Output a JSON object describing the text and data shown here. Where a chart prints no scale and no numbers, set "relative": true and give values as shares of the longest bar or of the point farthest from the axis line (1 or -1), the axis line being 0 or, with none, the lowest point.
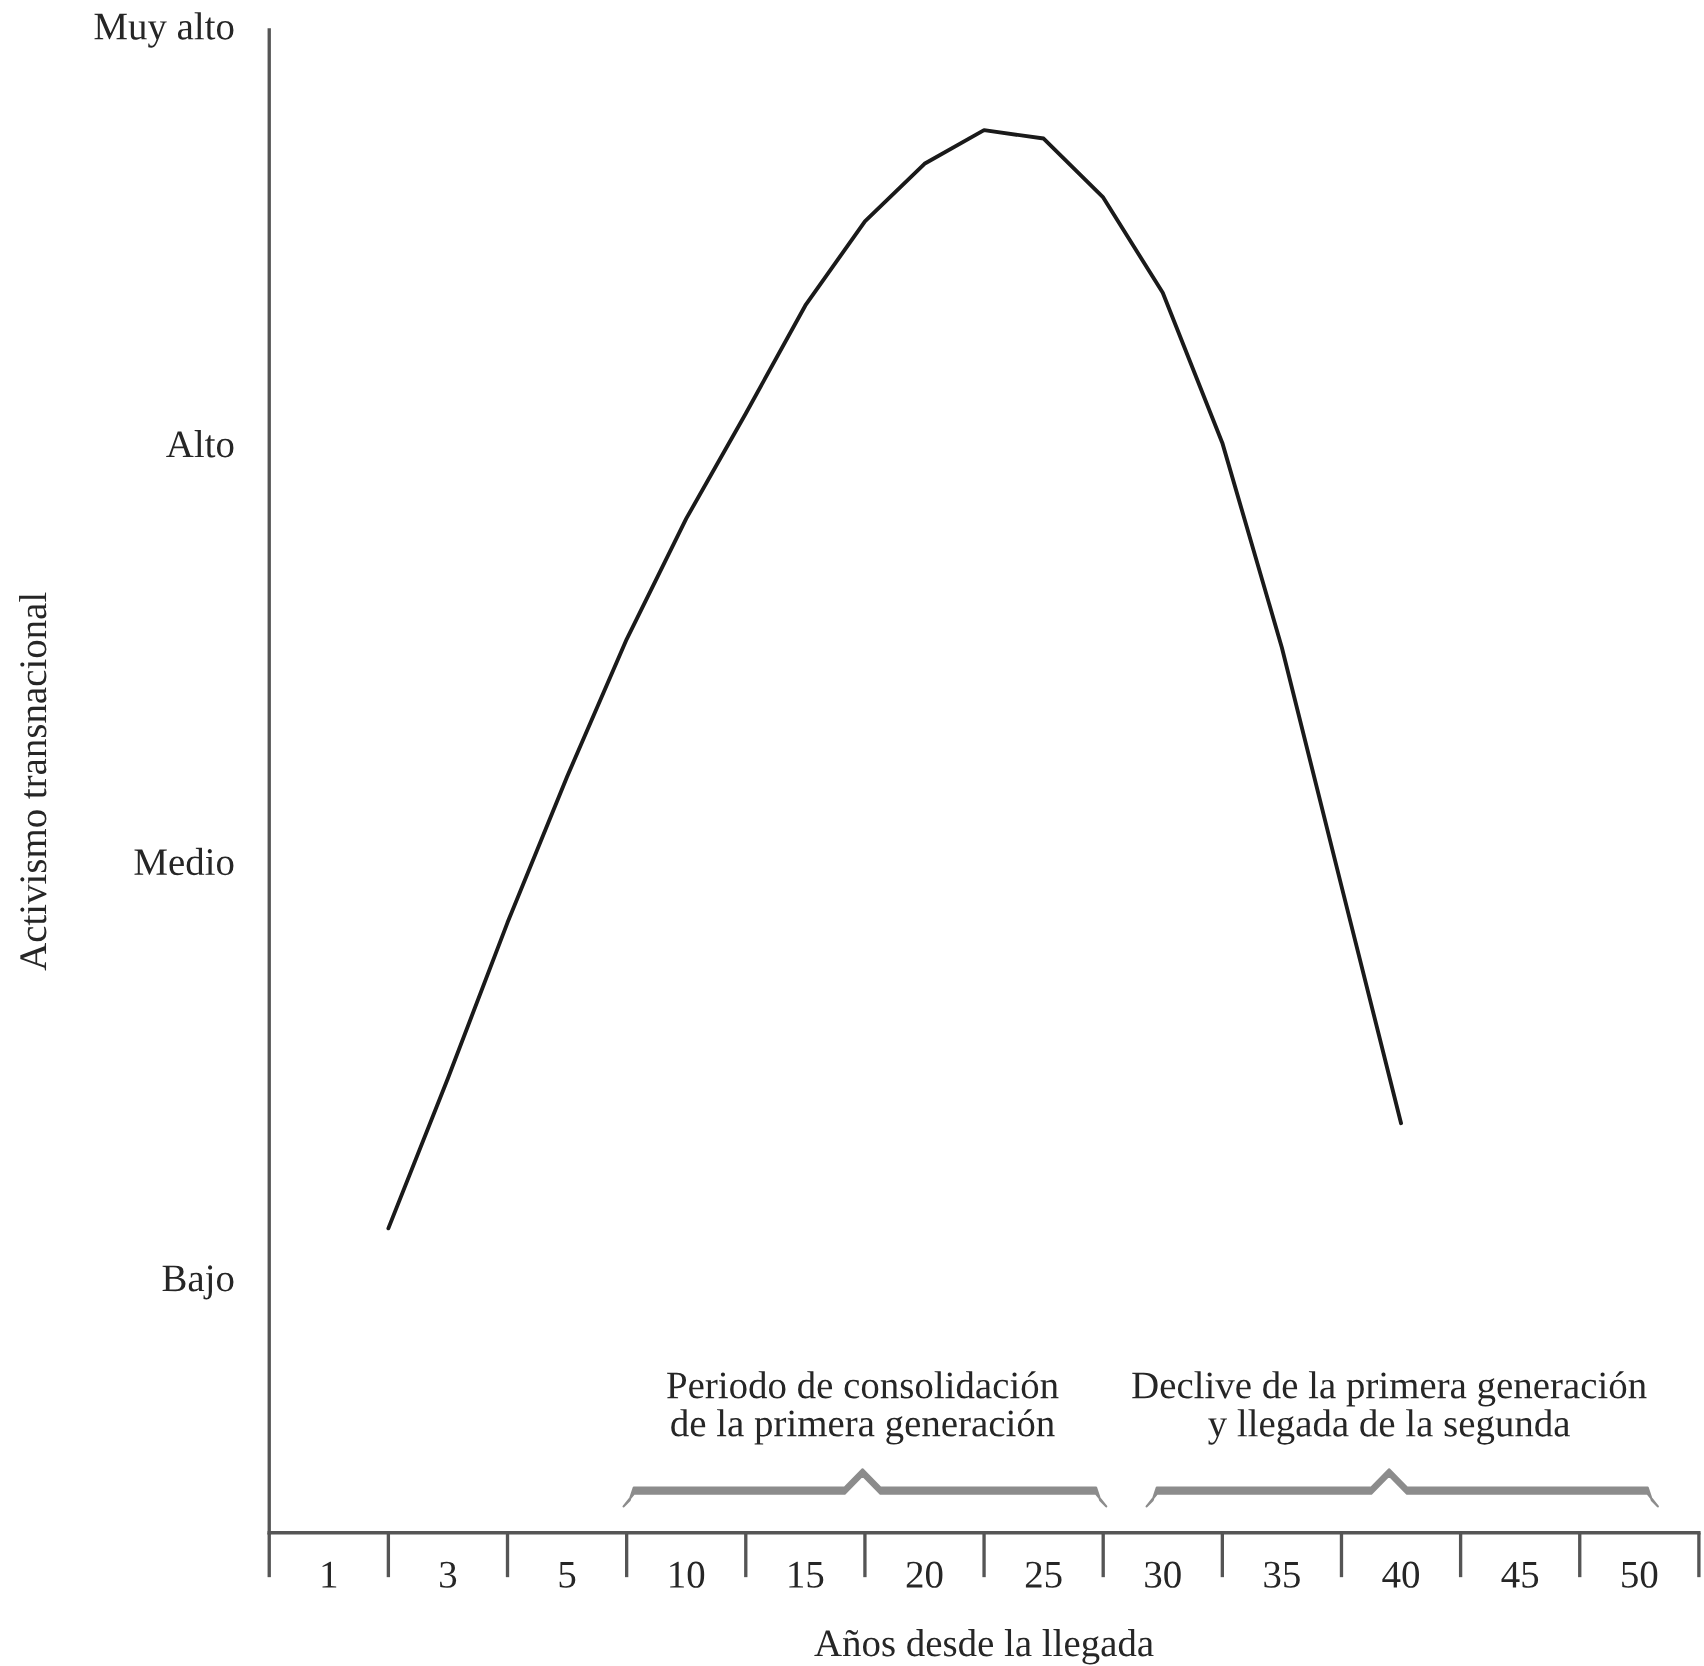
{
  "chart_data": {
    "type": "line",
    "relative": true,
    "tick_labels": "x",
    "xlabel": "Años desde la llegada",
    "categories": [
      null,
      "1",
      null,
      "3",
      null,
      "5",
      null,
      "10",
      null,
      "15",
      null,
      "20",
      null,
      "25",
      null,
      "30",
      null,
      "35",
      null,
      "40",
      null,
      "45",
      null,
      "50",
      null
    ],
    "series": [
      {
        "color": "#1a1a1a",
        "values": [
          null,
          null,
          0.217,
          0.324,
          0.435,
          0.539,
          0.637,
          0.723,
          0.798,
          0.875,
          0.935,
          0.976,
          1.0,
          0.994,
          0.952,
          0.884,
          0.777,
          0.631,
          0.461,
          0.292,
          null,
          null,
          null,
          null,
          null
        ]
      }
    ],
    "annotations": [
      "Activismo transnacional",
      "Muy alto",
      "Alto",
      "Medio",
      "Bajo",
      "Periodo de consolidación\nde la primera generación",
      "Declive de la primera generación\ny llegada de la segunda"
    ]
  }
}
